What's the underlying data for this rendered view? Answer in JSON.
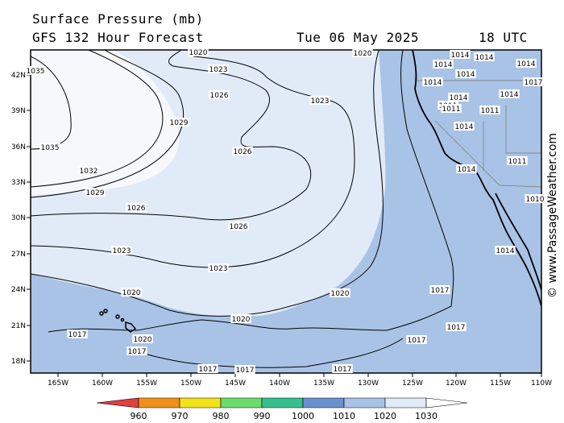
{
  "header": {
    "title": "Surface Pressure (mb)",
    "forecast": "GFS 132 Hour Forecast",
    "date": "Tue 06 May 2025",
    "time": "18 UTC"
  },
  "map": {
    "lat_labels": [
      "42N",
      "39N",
      "36N",
      "33N",
      "30N",
      "27N",
      "24N",
      "21N",
      "18N"
    ],
    "lon_labels": [
      "165W",
      "160W",
      "155W",
      "150W",
      "145W",
      "140W",
      "135W",
      "130W",
      "125W",
      "120W",
      "115W",
      "110W"
    ],
    "isobar_labels": [
      "1035",
      "1035",
      "1032",
      "1029",
      "1029",
      "1026",
      "1026",
      "1026",
      "1026",
      "1023",
      "1023",
      "1023",
      "1023",
      "1020",
      "1020",
      "1020",
      "1020",
      "1020",
      "1020",
      "1017",
      "1017",
      "1017",
      "1017",
      "1017",
      "1017",
      "1017",
      "1017",
      "1014",
      "1014",
      "1014",
      "1014",
      "1014",
      "1011",
      "1011",
      "1014",
      "1014",
      "1014",
      "1011",
      "1014",
      "1014",
      "1017",
      "1014",
      "1011",
      "1010"
    ],
    "colors": {
      "ocean_1010": "#a8c3e6",
      "fill_1020": "#e1ebf8",
      "fill_1030": "#f6f8fc",
      "land": "#a8c3e6"
    }
  },
  "colorbar": {
    "ticks": [
      "960",
      "970",
      "980",
      "990",
      "1000",
      "1010",
      "1020",
      "1030"
    ],
    "colors": [
      "#e04040",
      "#f0901a",
      "#f2e21a",
      "#6bdc6b",
      "#36c090",
      "#6a90d0",
      "#a8c3e6",
      "#e1ebf8",
      "#ffffff"
    ]
  },
  "watermark": "© www.PassageWeather.com"
}
